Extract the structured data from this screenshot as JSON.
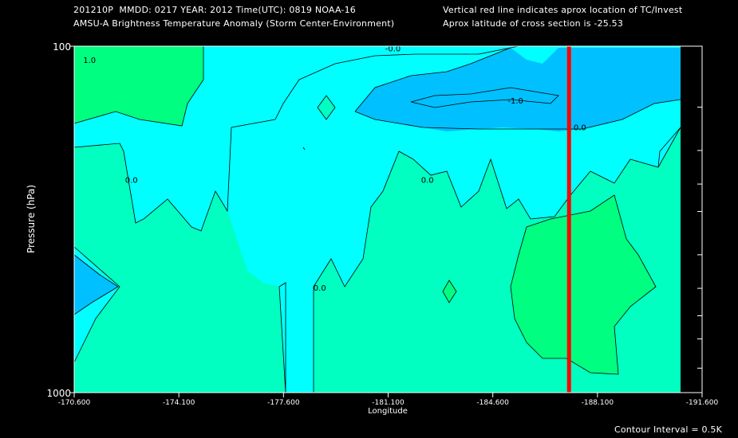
{
  "header": {
    "line1": "201210P  MMDD: 0217 YEAR: 2012 Time(UTC): 0819 NOAA-16",
    "line2": "AMSU-A Brightness Temperature Anomaly (Storm Center-Environment)",
    "line3": "Vertical red line indicates aprox location of TC/Invest",
    "line4": "Aprox latitude of cross section is -25.53"
  },
  "footer": {
    "contour_interval": "Contour Interval = 0.5K"
  },
  "colors": {
    "background": "#000000",
    "level_minus_1": "#00c0ff",
    "level_minus_0_5": "#00ffff",
    "level_0": "#00ffc0",
    "level_0_5": "#00ff80",
    "tc_line": "#ff0000"
  },
  "chart_data": {
    "type": "contour",
    "title": "AMSU-A Brightness Temperature Anomaly (Storm Center-Environment)",
    "xlabel": "Longitude",
    "ylabel": "Pressure (hPa)",
    "xlim": [
      -170.6,
      -191.6
    ],
    "ylim": [
      1000,
      100
    ],
    "y_scale": "log",
    "x_ticks": [
      "-170.600",
      "-174.100",
      "-177.600",
      "-181.100",
      "-184.600",
      "-188.100",
      "-191.600"
    ],
    "x_tick_values": [
      -170.6,
      -174.1,
      -177.6,
      -181.1,
      -184.6,
      -188.1,
      -191.6
    ],
    "y_tick_labels": [
      "100",
      "1000"
    ],
    "y_tick_values": [
      100,
      1000
    ],
    "right_axis_ticks": [
      150,
      200,
      250,
      300,
      400,
      500,
      600,
      700,
      850
    ],
    "contour_labels": [
      {
        "text": "1.0",
        "lon": -170.9,
        "p": 110
      },
      {
        "text": "-0.0",
        "lon": -181.0,
        "p": 102
      },
      {
        "text": "-1.0",
        "lon": -185.1,
        "p": 144
      },
      {
        "text": "0.0",
        "lon": -187.3,
        "p": 172
      },
      {
        "text": "0.0",
        "lon": -172.3,
        "p": 244
      },
      {
        "text": "0.0",
        "lon": -182.2,
        "p": 244
      },
      {
        "text": "0.0",
        "lon": -178.6,
        "p": 500
      }
    ],
    "tc_longitude": -187.15,
    "data_extent_lon": [
      -170.6,
      -191.1
    ],
    "grid": false
  }
}
